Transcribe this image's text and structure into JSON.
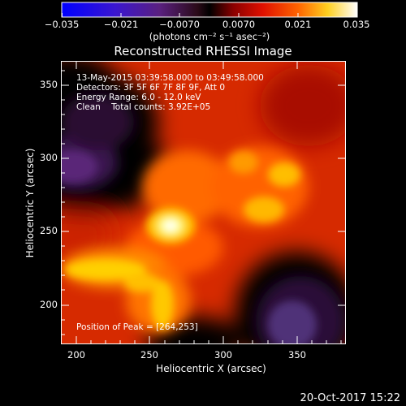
{
  "colorbar": {
    "ticks": [
      "−0.035",
      "−0.021",
      "−0.0070",
      "0.0070",
      "0.021",
      "0.035"
    ],
    "units_label": "(photons cm⁻² s⁻¹ asec⁻²)"
  },
  "plot": {
    "title": "Reconstructed RHESSI Image",
    "xlabel": "Heliocentric X (arcsec)",
    "ylabel": "Heliocentric Y (arcsec)",
    "xticks": [
      "200",
      "250",
      "300",
      "350"
    ],
    "yticks": [
      "200",
      "250",
      "300",
      "350"
    ],
    "xlim": [
      190,
      383
    ],
    "ylim": [
      173,
      370
    ],
    "annotations": {
      "time_range": "13-May-2015 03:39:58.000 to 03:49:58.000",
      "detectors": "Detectors: 3F 5F 6F 7F 8F 9F, Att 0",
      "energy": "Energy Range: 6.0 - 12.0 keV",
      "clean": "Clean    Total counts: 3.92E+05",
      "peak": "Position of Peak = [264,253]"
    }
  },
  "footer": {
    "date": "20-Oct-2017 15:22"
  }
}
